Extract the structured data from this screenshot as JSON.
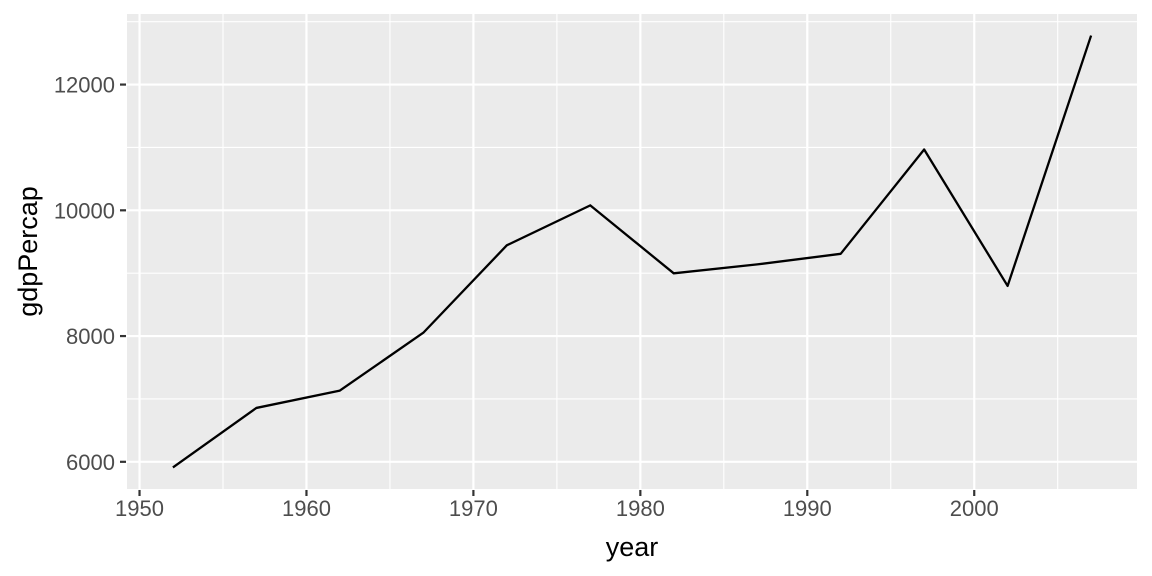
{
  "chart_data": {
    "type": "line",
    "title": "",
    "xlabel": "year",
    "ylabel": "gdpPercap",
    "x": [
      1952,
      1957,
      1962,
      1967,
      1972,
      1977,
      1982,
      1987,
      1992,
      1997,
      2002,
      2007
    ],
    "series": [
      {
        "name": "gdpPercap",
        "values": [
          5911.3,
          6856.9,
          7133.2,
          8053.0,
          9443.0,
          10079.0,
          8997.9,
          9139.7,
          9308.4,
          10967.3,
          8797.6,
          12779.4
        ]
      }
    ],
    "xlim": [
      1949.25,
      2009.75
    ],
    "ylim": [
      5567.6,
      13122.4
    ],
    "x_major_ticks": {
      "values": [
        1950,
        1960,
        1970,
        1980,
        1990,
        2000
      ],
      "labels": [
        "1950",
        "1960",
        "1970",
        "1980",
        "1990",
        "2000"
      ]
    },
    "x_minor_ticks": [
      1955,
      1965,
      1975,
      1985,
      1995,
      2005
    ],
    "y_major_ticks": {
      "values": [
        6000,
        8000,
        10000,
        12000
      ],
      "labels": [
        "6000",
        "8000",
        "10000",
        "12000"
      ]
    },
    "y_minor_ticks": [
      7000,
      9000,
      11000,
      13000
    ],
    "grid": true,
    "legend_position": "none",
    "style": {
      "plot_bg": "#FFFFFF",
      "panel_bg": "#EBEBEB",
      "grid_color": "#FFFFFF",
      "line_color": "#000000",
      "tick_mark_color": "#333333",
      "tick_label_color": "#4D4D4D",
      "axis_title_color": "#000000"
    }
  }
}
